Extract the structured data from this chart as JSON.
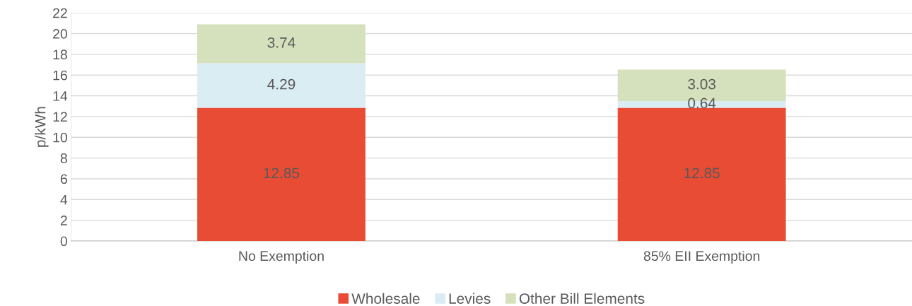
{
  "chart_data": {
    "type": "bar",
    "stacked": true,
    "ylabel": "p/kWh",
    "categories": [
      "No Exemption",
      "85% EII Exemption"
    ],
    "series": [
      {
        "name": "Wholesale",
        "color": "#e84c35",
        "values": [
          12.85,
          12.85
        ]
      },
      {
        "name": "Levies",
        "color": "#daedf3",
        "values": [
          4.29,
          0.64
        ]
      },
      {
        "name": "Other Bill Elements",
        "color": "#d5e0bc",
        "values": [
          3.74,
          3.03
        ]
      }
    ],
    "ylim": [
      0,
      22
    ],
    "yticks": [
      0,
      2,
      4,
      6,
      8,
      10,
      12,
      14,
      16,
      18,
      20,
      22
    ],
    "grid": "y",
    "legend": "bottom",
    "data_labels": true
  }
}
